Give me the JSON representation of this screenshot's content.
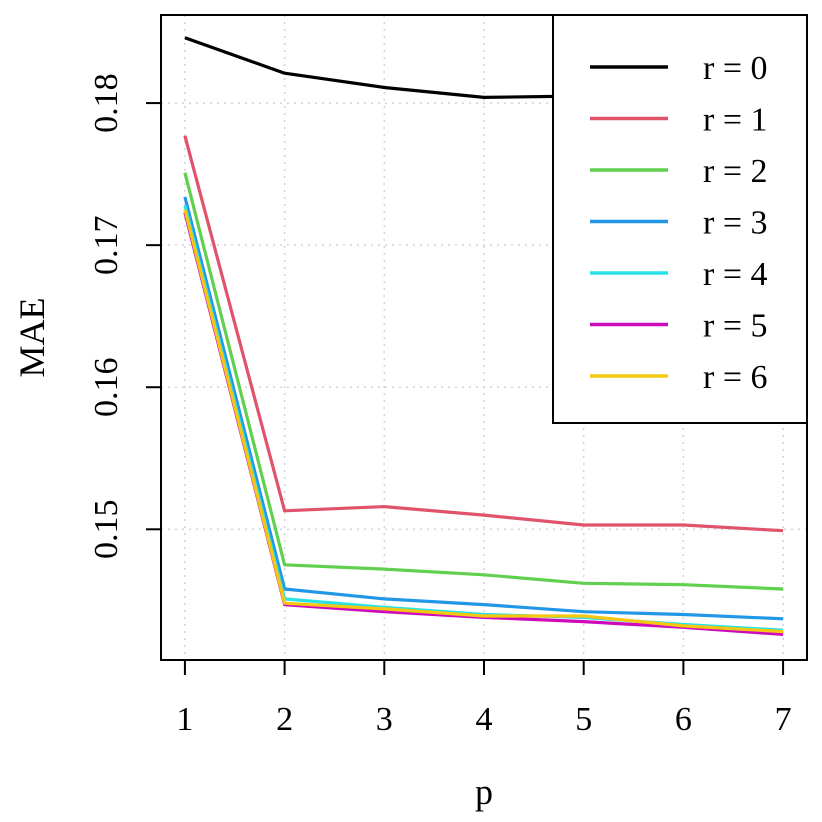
{
  "chart_data": {
    "type": "line",
    "xlabel": "p",
    "ylabel": "MAE",
    "x": [
      1,
      2,
      3,
      4,
      5,
      6,
      7
    ],
    "xlim": [
      0.76,
      7.24
    ],
    "ylim": [
      0.1408,
      0.1862
    ],
    "xticks": [
      1,
      2,
      3,
      4,
      5,
      6,
      7
    ],
    "yticks": [
      0.15,
      0.16,
      0.17,
      0.18
    ],
    "grid": true,
    "legend_position": "top-right",
    "series": [
      {
        "name": "r = 0",
        "color": "#000000",
        "values": [
          0.1846,
          0.1821,
          0.1811,
          0.1804,
          0.1805,
          0.1803,
          0.1799
        ]
      },
      {
        "name": "r = 1",
        "color": "#DF536B",
        "values": [
          0.1777,
          0.1513,
          0.1516,
          0.151,
          0.1503,
          0.1503,
          0.1499
        ]
      },
      {
        "name": "r = 2",
        "color": "#61D04F",
        "values": [
          0.1751,
          0.1475,
          0.1472,
          0.1468,
          0.1462,
          0.1461,
          0.1458
        ]
      },
      {
        "name": "r = 3",
        "color": "#2297E6",
        "values": [
          0.1734,
          0.1458,
          0.1451,
          0.1447,
          0.1442,
          0.144,
          0.1437
        ]
      },
      {
        "name": "r = 4",
        "color": "#28E2E5",
        "values": [
          0.1728,
          0.1451,
          0.1445,
          0.144,
          0.1438,
          0.1433,
          0.1429
        ]
      },
      {
        "name": "r = 5",
        "color": "#CD0BBC",
        "values": [
          0.1723,
          0.1447,
          0.1442,
          0.1438,
          0.1435,
          0.1431,
          0.1426
        ]
      },
      {
        "name": "r = 6",
        "color": "#F5C710",
        "values": [
          0.1725,
          0.1448,
          0.1444,
          0.1439,
          0.1439,
          0.1432,
          0.1428
        ]
      }
    ]
  }
}
